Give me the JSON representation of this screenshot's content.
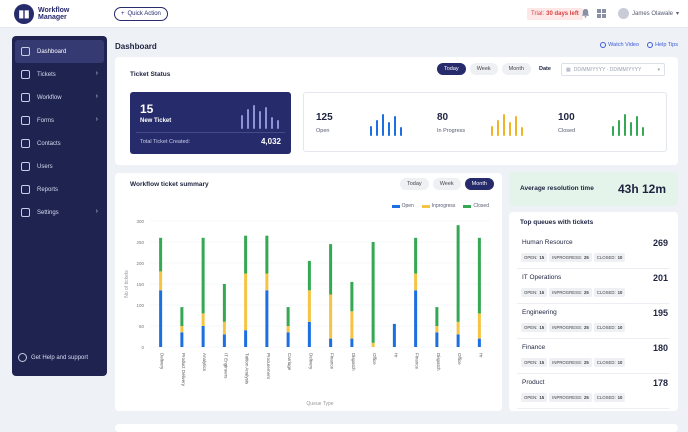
{
  "topbar": {
    "logo_line1": "Workflow",
    "logo_line2": "Manager",
    "quick_action": "Quick Action",
    "trial_label": "Trial:",
    "trial_days": "30 days left",
    "user_name": "James Olawale"
  },
  "sidebar": {
    "items": [
      {
        "label": "Dashboard",
        "active": true,
        "chevron": false
      },
      {
        "label": "Tickets",
        "active": false,
        "chevron": true
      },
      {
        "label": "Workflow",
        "active": false,
        "chevron": true
      },
      {
        "label": "Forms",
        "active": false,
        "chevron": true
      },
      {
        "label": "Contacts",
        "active": false,
        "chevron": false
      },
      {
        "label": "Users",
        "active": false,
        "chevron": false
      },
      {
        "label": "Reports",
        "active": false,
        "chevron": false
      },
      {
        "label": "Settings",
        "active": false,
        "chevron": true
      }
    ],
    "help": "Get Help and support"
  },
  "page": {
    "title": "Dashboard",
    "watch_video": "Watch Video",
    "help_tips": "Help Tips"
  },
  "ticket_status": {
    "title": "Ticket Status",
    "periods": [
      "Today",
      "Week",
      "Month"
    ],
    "selected_period": "Today",
    "date_label": "Date",
    "date_placeholder": "DD/MM/YYYY - DD/MM/YYYY",
    "new_count": "15",
    "new_label": "New Ticket",
    "total_label": "Total Ticket Created:",
    "total_value": "4,032",
    "stats": [
      {
        "value": "125",
        "label": "Open",
        "color": "#1c6fe0"
      },
      {
        "value": "80",
        "label": "In Progress",
        "color": "#f0b429"
      },
      {
        "value": "100",
        "label": "Closed",
        "color": "#34a853"
      }
    ]
  },
  "workflow": {
    "title": "Workflow ticket summary",
    "periods": [
      "Today",
      "Week",
      "Month"
    ],
    "selected_period": "Month"
  },
  "chart_data": {
    "type": "bar",
    "stacked": true,
    "xlabel": "Queue Type",
    "ylabel": "No of tickets",
    "ylim": [
      0,
      300
    ],
    "yticks": [
      0,
      50,
      100,
      150,
      200,
      250,
      300
    ],
    "categories": [
      "Delivery",
      "Product Delivery",
      "Analytics",
      "IT Engineers",
      "Tuition Analysis",
      "Procurement",
      "Carriage",
      "Delivery",
      "Finance",
      "Dispatch",
      "Office",
      "Hr",
      "Finance",
      "Dispatch",
      "Office",
      "Hr"
    ],
    "series": [
      {
        "name": "Open",
        "color": "#1c6fe0",
        "values": [
          135,
          35,
          50,
          30,
          40,
          135,
          35,
          60,
          20,
          20,
          0,
          55,
          135,
          35,
          30,
          20
        ]
      },
      {
        "name": "Inprogress",
        "color": "#f5c443",
        "values": [
          45,
          15,
          30,
          30,
          135,
          40,
          15,
          75,
          105,
          65,
          10,
          0,
          40,
          15,
          30,
          60
        ]
      },
      {
        "name": "Closed",
        "color": "#34a853",
        "values": [
          80,
          45,
          180,
          90,
          90,
          90,
          45,
          70,
          120,
          70,
          240,
          0,
          85,
          45,
          230,
          180
        ]
      }
    ]
  },
  "avg_resolution": {
    "label": "Average resolution time",
    "value": "43h 12m"
  },
  "top_queues": {
    "title": "Top queues with tickets",
    "open_label": "OPEN:",
    "inprogress_label": "INPROGRESS:",
    "closed_label": "CLOSED:",
    "items": [
      {
        "name": "Human Resource",
        "count": "269",
        "open": "15",
        "inprogress": "25",
        "closed": "10"
      },
      {
        "name": "IT Operations",
        "count": "201",
        "open": "15",
        "inprogress": "25",
        "closed": "10"
      },
      {
        "name": "Engineering",
        "count": "195",
        "open": "15",
        "inprogress": "25",
        "closed": "10"
      },
      {
        "name": "Finance",
        "count": "180",
        "open": "15",
        "inprogress": "25",
        "closed": "10"
      },
      {
        "name": "Product",
        "count": "178",
        "open": "15",
        "inprogress": "25",
        "closed": "10"
      }
    ]
  },
  "colors": {
    "primary": "#262b6b",
    "open": "#1c6fe0",
    "inprogress": "#f5c443",
    "closed": "#34a853",
    "avg_bg": "#e5f4ea"
  }
}
